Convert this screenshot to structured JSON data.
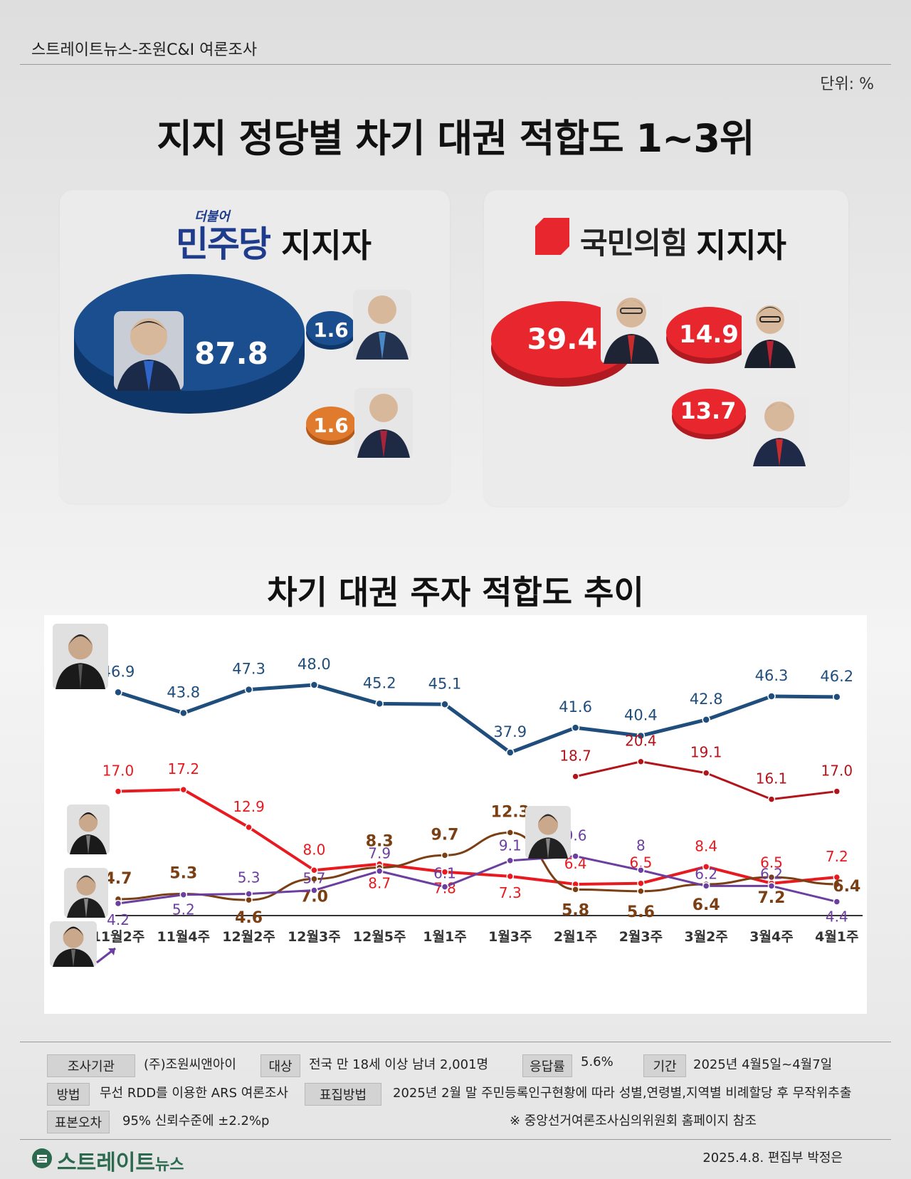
{
  "header": {
    "source": "스트레이트뉴스-조원C&I 여론조사",
    "unit": "단위: %",
    "title": "지지 정당별 차기 대권 적합도 1~3위"
  },
  "dem_card": {
    "logo_small": "더불어",
    "logo": "민주당",
    "supporter": "지지자",
    "values": [
      "87.8",
      "1.6",
      "1.6"
    ],
    "colors": [
      "#1b4e8f",
      "#1b4e8f",
      "#e07b2e"
    ]
  },
  "ppp_card": {
    "logo": "국민의힘",
    "supporter": "지지자",
    "values": [
      "39.4",
      "14.9",
      "13.7"
    ],
    "color": "#e8262e"
  },
  "trend_title": "차기 대권 주자 적합도 추이",
  "chart_data": {
    "type": "line",
    "categories": [
      "11월2주",
      "11월4주",
      "12월2주",
      "12월3주",
      "12월5주",
      "1월1주",
      "1월3주",
      "2월1주",
      "2월3주",
      "3월2주",
      "3월4주",
      "4월1주"
    ],
    "series": [
      {
        "key": "lee",
        "color": "#1f4e7d",
        "values": [
          46.9,
          43.8,
          47.3,
          48.0,
          45.2,
          45.1,
          37.9,
          41.6,
          40.4,
          42.8,
          46.3,
          46.2
        ],
        "labels": [
          "46.9",
          "43.8",
          "47.3",
          "48.0",
          "45.2",
          "45.1",
          "37.9",
          "41.6",
          "40.4",
          "42.8",
          "46.3",
          "46.2"
        ]
      },
      {
        "key": "han",
        "color": "#e8191f",
        "values": [
          17.0,
          17.2,
          12.9,
          8.0,
          8.7,
          7.8,
          7.3,
          6.4,
          6.5,
          8.4,
          6.5,
          7.2
        ],
        "labels": [
          "17.0",
          "17.2",
          "12.9",
          "8.0",
          "8.7",
          "7.8",
          "7.3",
          "6.4",
          "6.5",
          "8.4",
          "6.5",
          "7.2"
        ]
      },
      {
        "key": "kim",
        "color": "#b3141a",
        "values": [
          null,
          null,
          null,
          null,
          null,
          null,
          null,
          18.7,
          20.4,
          19.1,
          16.1,
          17.0
        ],
        "labels": [
          "",
          "",
          "",
          "",
          "",
          "",
          "",
          "18.7",
          "20.4",
          "19.1",
          "16.1",
          "17.0"
        ]
      },
      {
        "key": "hong",
        "color": "#7b3f14",
        "values": [
          4.7,
          5.3,
          4.6,
          7.0,
          8.3,
          9.7,
          12.3,
          5.8,
          5.6,
          6.4,
          7.2,
          6.4
        ],
        "labels": [
          "4.7",
          "5.3",
          "4.6",
          "7.0",
          "8.3",
          "9.7",
          "12.3",
          "5.8",
          "5.6",
          "6.4",
          "7.2",
          "6.4"
        ]
      },
      {
        "key": "lee_js",
        "color": "#6b3fa0",
        "values": [
          4.2,
          5.2,
          5.3,
          5.7,
          7.9,
          6.1,
          9.1,
          9.6,
          8.0,
          6.2,
          6.2,
          4.4
        ],
        "labels": [
          "4.2",
          "5.2",
          "5.3",
          "5.7",
          "7.9",
          "6.1",
          "9.1",
          "9.6",
          "8",
          "6.2",
          "6.2",
          "4.4"
        ]
      }
    ]
  },
  "info": {
    "agency_label": "조사기관",
    "agency": "(주)조원씨앤아이",
    "target_label": "대상",
    "target": "전국 만 18세 이상 남녀 2,001명",
    "response_label": "응답률",
    "response": "5.6%",
    "period_label": "기간",
    "period": "2025년 4월5일~4월7일",
    "method_label": "방법",
    "method": "무선 RDD를 이용한 ARS 여론조사",
    "sampling_label": "표집방법",
    "sampling": "2025년 2월 말 주민등록인구현황에 따라 성별,연령별,지역별 비례할당 후 무작위추출",
    "error_label": "표본오차",
    "error": "95% 신뢰수준에 ±2.2%p",
    "note": "※ 중앙선거여론조사심의위원회 홈페이지 참조"
  },
  "footer": {
    "brand_main": "스트레이트",
    "brand_sub": "뉴스",
    "date": "2025.4.8. 편집부 박정은"
  }
}
